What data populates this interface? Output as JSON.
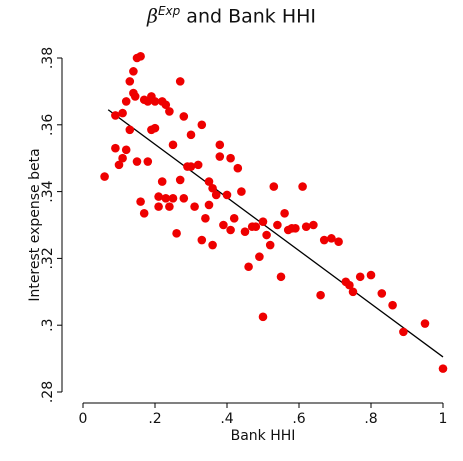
{
  "title": {
    "symbol": "β",
    "superscript": "Exp",
    "rest": "and Bank HHI"
  },
  "colors": {
    "points": "#ee0000",
    "fit_line": "#000000",
    "axis": "#000000",
    "background": "#ffffff"
  },
  "chart_data": {
    "type": "scatter",
    "title": "βExp and Bank HHI",
    "xlabel": "Bank HHI",
    "ylabel": "Interest expense beta",
    "xlim": [
      0,
      1.0
    ],
    "ylim": [
      0.28,
      0.38
    ],
    "xticks": [
      0,
      0.2,
      0.4,
      0.6,
      0.8,
      1
    ],
    "xtick_labels": [
      "0",
      ".2",
      ".4",
      ".6",
      ".8",
      "1"
    ],
    "yticks": [
      0.28,
      0.3,
      0.32,
      0.34,
      0.36,
      0.38
    ],
    "ytick_labels": [
      ".28",
      ".3",
      ".32",
      ".34",
      ".36",
      ".38"
    ],
    "grid": false,
    "fit_line": {
      "x": [
        0.07,
        1.0
      ],
      "y": [
        0.3645,
        0.2905
      ]
    },
    "points": [
      {
        "x": 0.06,
        "y": 0.3445
      },
      {
        "x": 0.09,
        "y": 0.353
      },
      {
        "x": 0.09,
        "y": 0.3628
      },
      {
        "x": 0.1,
        "y": 0.348
      },
      {
        "x": 0.11,
        "y": 0.35
      },
      {
        "x": 0.11,
        "y": 0.3635
      },
      {
        "x": 0.12,
        "y": 0.367
      },
      {
        "x": 0.12,
        "y": 0.3525
      },
      {
        "x": 0.13,
        "y": 0.373
      },
      {
        "x": 0.13,
        "y": 0.3585
      },
      {
        "x": 0.14,
        "y": 0.376
      },
      {
        "x": 0.14,
        "y": 0.3695
      },
      {
        "x": 0.145,
        "y": 0.3685
      },
      {
        "x": 0.15,
        "y": 0.349
      },
      {
        "x": 0.15,
        "y": 0.38
      },
      {
        "x": 0.16,
        "y": 0.3805
      },
      {
        "x": 0.16,
        "y": 0.337
      },
      {
        "x": 0.17,
        "y": 0.3335
      },
      {
        "x": 0.17,
        "y": 0.3675
      },
      {
        "x": 0.18,
        "y": 0.367
      },
      {
        "x": 0.18,
        "y": 0.349
      },
      {
        "x": 0.19,
        "y": 0.3585
      },
      {
        "x": 0.19,
        "y": 0.3685
      },
      {
        "x": 0.2,
        "y": 0.367
      },
      {
        "x": 0.2,
        "y": 0.359
      },
      {
        "x": 0.21,
        "y": 0.3385
      },
      {
        "x": 0.21,
        "y": 0.3355
      },
      {
        "x": 0.22,
        "y": 0.367
      },
      {
        "x": 0.22,
        "y": 0.343
      },
      {
        "x": 0.23,
        "y": 0.338
      },
      {
        "x": 0.23,
        "y": 0.366
      },
      {
        "x": 0.24,
        "y": 0.364
      },
      {
        "x": 0.24,
        "y": 0.3355
      },
      {
        "x": 0.25,
        "y": 0.354
      },
      {
        "x": 0.25,
        "y": 0.338
      },
      {
        "x": 0.26,
        "y": 0.3275
      },
      {
        "x": 0.27,
        "y": 0.373
      },
      {
        "x": 0.27,
        "y": 0.3435
      },
      {
        "x": 0.28,
        "y": 0.338
      },
      {
        "x": 0.28,
        "y": 0.3625
      },
      {
        "x": 0.29,
        "y": 0.3475
      },
      {
        "x": 0.3,
        "y": 0.357
      },
      {
        "x": 0.3,
        "y": 0.3475
      },
      {
        "x": 0.31,
        "y": 0.3355
      },
      {
        "x": 0.32,
        "y": 0.348
      },
      {
        "x": 0.33,
        "y": 0.36
      },
      {
        "x": 0.33,
        "y": 0.3255
      },
      {
        "x": 0.34,
        "y": 0.332
      },
      {
        "x": 0.35,
        "y": 0.343
      },
      {
        "x": 0.35,
        "y": 0.336
      },
      {
        "x": 0.36,
        "y": 0.341
      },
      {
        "x": 0.36,
        "y": 0.324
      },
      {
        "x": 0.37,
        "y": 0.339
      },
      {
        "x": 0.38,
        "y": 0.354
      },
      {
        "x": 0.38,
        "y": 0.3505
      },
      {
        "x": 0.39,
        "y": 0.33
      },
      {
        "x": 0.4,
        "y": 0.339
      },
      {
        "x": 0.41,
        "y": 0.3285
      },
      {
        "x": 0.41,
        "y": 0.35
      },
      {
        "x": 0.42,
        "y": 0.332
      },
      {
        "x": 0.43,
        "y": 0.347
      },
      {
        "x": 0.44,
        "y": 0.34
      },
      {
        "x": 0.45,
        "y": 0.328
      },
      {
        "x": 0.46,
        "y": 0.3175
      },
      {
        "x": 0.47,
        "y": 0.3295
      },
      {
        "x": 0.48,
        "y": 0.3295
      },
      {
        "x": 0.49,
        "y": 0.3205
      },
      {
        "x": 0.5,
        "y": 0.331
      },
      {
        "x": 0.5,
        "y": 0.3025
      },
      {
        "x": 0.51,
        "y": 0.327
      },
      {
        "x": 0.52,
        "y": 0.324
      },
      {
        "x": 0.53,
        "y": 0.3415
      },
      {
        "x": 0.54,
        "y": 0.33
      },
      {
        "x": 0.55,
        "y": 0.3145
      },
      {
        "x": 0.56,
        "y": 0.3335
      },
      {
        "x": 0.57,
        "y": 0.3285
      },
      {
        "x": 0.58,
        "y": 0.329
      },
      {
        "x": 0.59,
        "y": 0.329
      },
      {
        "x": 0.61,
        "y": 0.3415
      },
      {
        "x": 0.62,
        "y": 0.3295
      },
      {
        "x": 0.64,
        "y": 0.33
      },
      {
        "x": 0.66,
        "y": 0.309
      },
      {
        "x": 0.67,
        "y": 0.3255
      },
      {
        "x": 0.69,
        "y": 0.326
      },
      {
        "x": 0.71,
        "y": 0.325
      },
      {
        "x": 0.73,
        "y": 0.313
      },
      {
        "x": 0.74,
        "y": 0.312
      },
      {
        "x": 0.75,
        "y": 0.31
      },
      {
        "x": 0.77,
        "y": 0.3145
      },
      {
        "x": 0.8,
        "y": 0.315
      },
      {
        "x": 0.83,
        "y": 0.3095
      },
      {
        "x": 0.86,
        "y": 0.306
      },
      {
        "x": 0.89,
        "y": 0.298
      },
      {
        "x": 0.95,
        "y": 0.3005
      },
      {
        "x": 1.0,
        "y": 0.287
      }
    ]
  }
}
